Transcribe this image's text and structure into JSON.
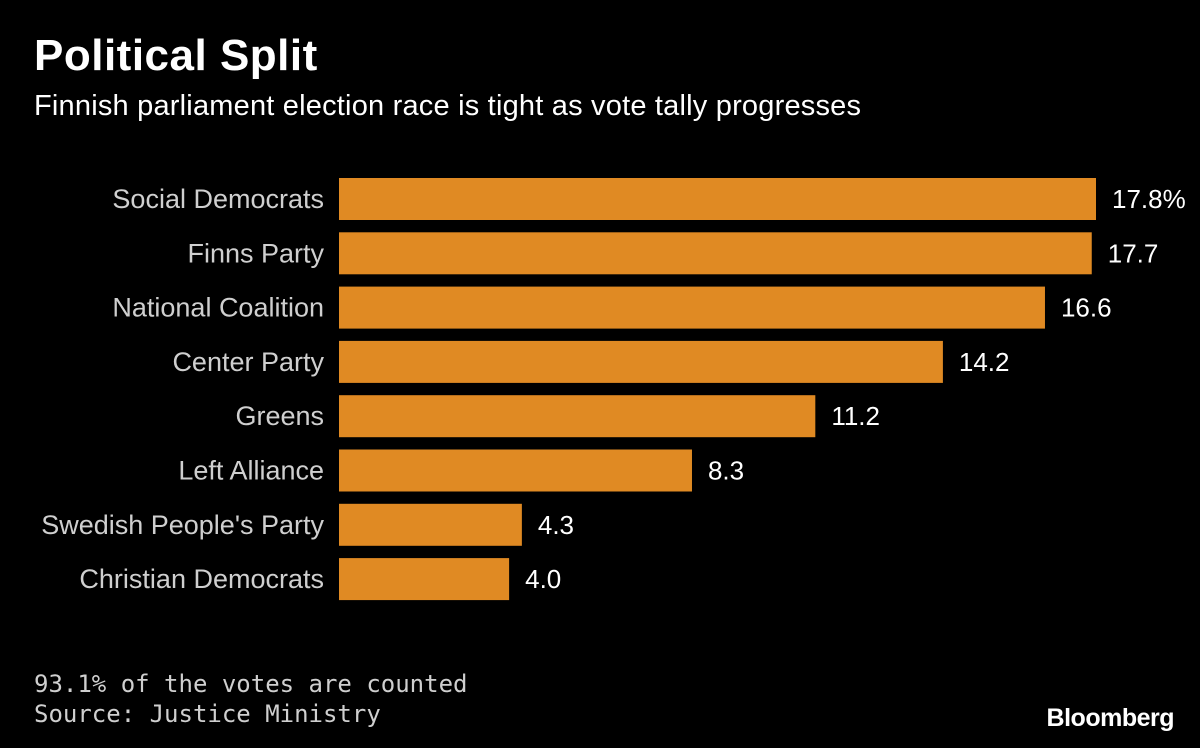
{
  "header": {
    "title": "Political Split",
    "subtitle": "Finnish parliament election race is tight as vote tally progresses"
  },
  "chart_data": {
    "type": "bar",
    "orientation": "horizontal",
    "title": "Political Split",
    "subtitle": "Finnish parliament election race is tight as vote tally progresses",
    "categories": [
      "Social Democrats",
      "Finns Party",
      "National Coalition",
      "Center Party",
      "Greens",
      "Left Alliance",
      "Swedish People's Party",
      "Christian Democrats"
    ],
    "values": [
      17.8,
      17.7,
      16.6,
      14.2,
      11.2,
      8.3,
      4.3,
      4.0
    ],
    "value_labels": [
      "17.8%",
      "17.7",
      "16.6",
      "14.2",
      "11.2",
      "8.3",
      "4.3",
      "4.0"
    ],
    "xlabel": "",
    "ylabel": "",
    "xlim": [
      0,
      17.8
    ],
    "grid": false,
    "bar_color": "#e08a23",
    "background_color": "#000000"
  },
  "footer": {
    "note": "93.1% of the votes are counted",
    "source": "Source: Justice Ministry",
    "logo": "Bloomberg"
  }
}
